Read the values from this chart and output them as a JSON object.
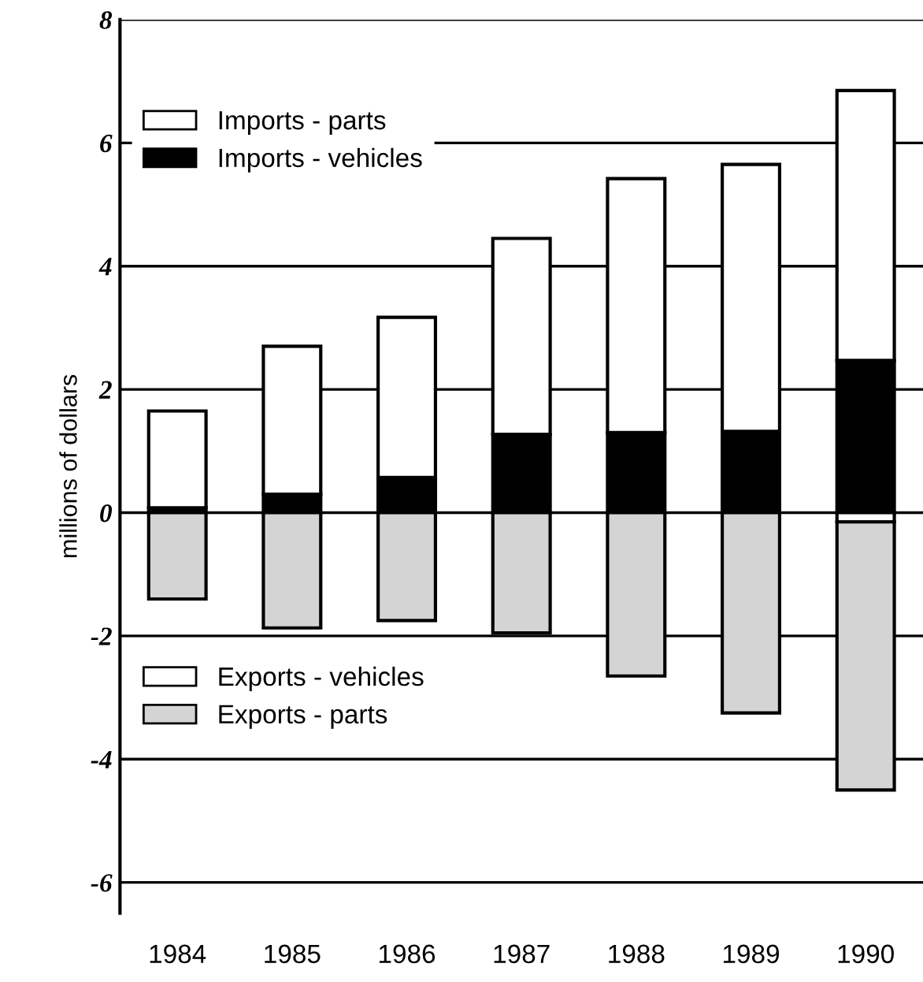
{
  "chart_data": {
    "type": "bar",
    "stacked": true,
    "ylabel": "millions of dollars",
    "categories": [
      "1984",
      "1985",
      "1986",
      "1987",
      "1988",
      "1989",
      "1990"
    ],
    "series": [
      {
        "name": "Imports - vehicles",
        "color": "#000000",
        "values": [
          0.08,
          0.3,
          0.57,
          1.27,
          1.3,
          1.32,
          2.47
        ]
      },
      {
        "name": "Imports - parts",
        "color": "#ffffff",
        "values": [
          1.57,
          2.4,
          2.6,
          3.18,
          4.12,
          4.33,
          4.38
        ]
      },
      {
        "name": "Exports - vehicles",
        "color": "#ffffff",
        "values": [
          null,
          null,
          null,
          null,
          null,
          null,
          -0.15
        ]
      },
      {
        "name": "Exports - parts",
        "color": "#d4d4d4",
        "values": [
          -1.4,
          -1.87,
          -1.75,
          -1.95,
          -2.65,
          -3.25,
          -4.35
        ]
      }
    ],
    "ylim": [
      -6.5,
      8
    ],
    "yticks": [
      8,
      6,
      4,
      2,
      0,
      {
        "value": -2,
        "label": "-2"
      },
      {
        "value": -4,
        "label": "-4"
      },
      {
        "value": -6,
        "label": "-6"
      }
    ],
    "grid": "y",
    "legend": "left"
  }
}
